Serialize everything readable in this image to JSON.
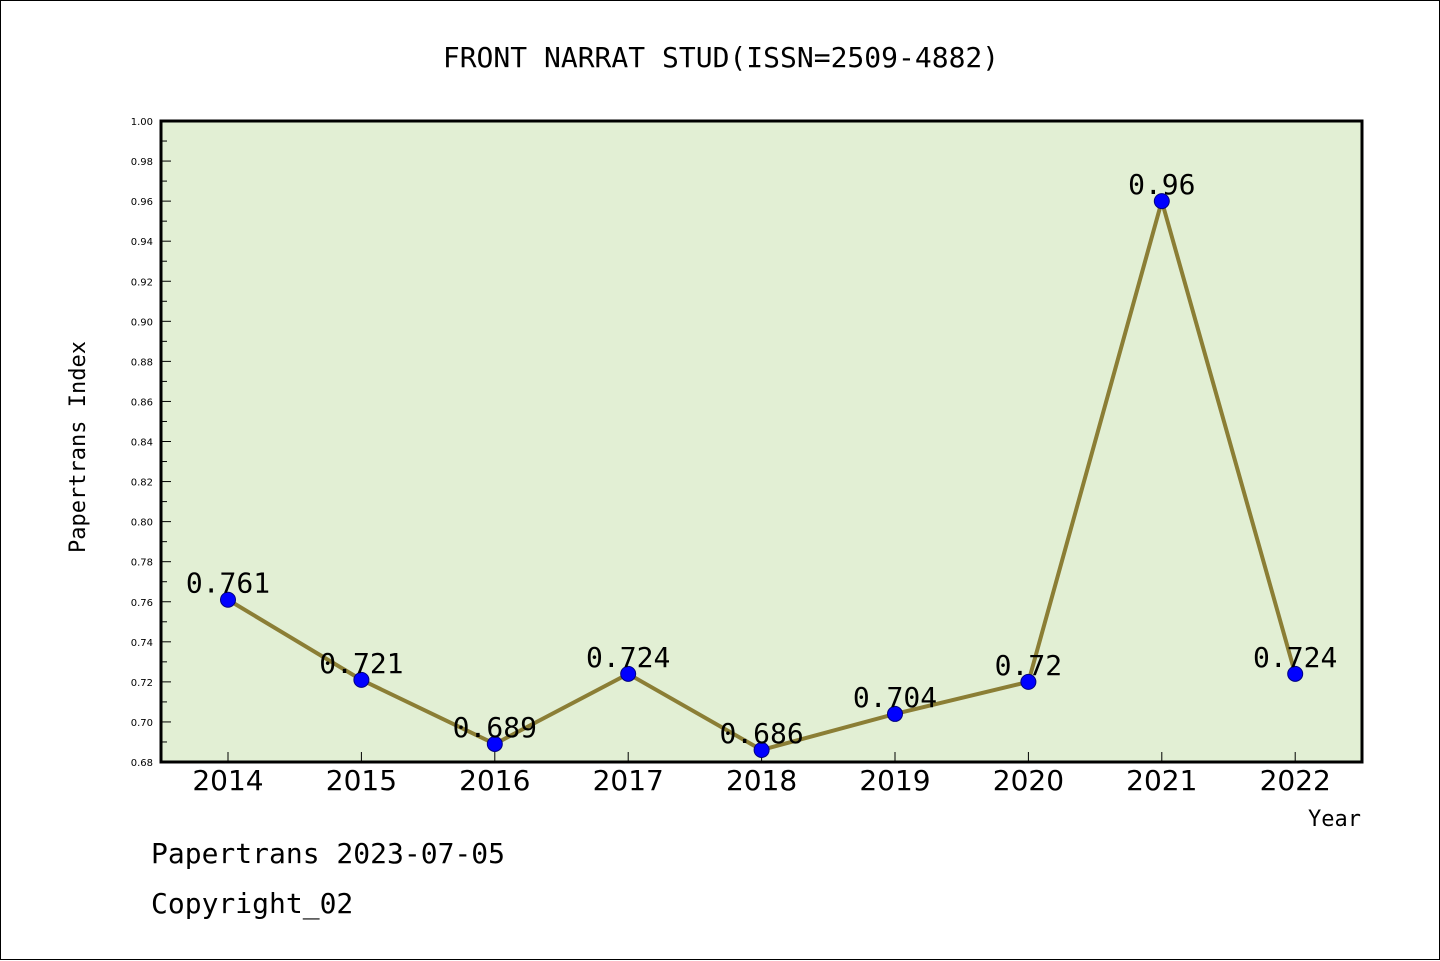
{
  "colors": {
    "plot_background": "#e2efd4",
    "line": "#8b7e35",
    "marker": "#0000ff",
    "marker_edge": "#000080"
  },
  "footer": {
    "line1": "Papertrans 2023-07-05",
    "line2": "Copyright_02"
  },
  "chart_data": {
    "type": "line",
    "title": "FRONT NARRAT STUD(ISSN=2509-4882)",
    "xlabel": "Year",
    "ylabel": "Papertrans Index",
    "ylim": [
      0.68,
      1.0
    ],
    "grid": false,
    "categories": [
      "2014",
      "2015",
      "2016",
      "2017",
      "2018",
      "2019",
      "2020",
      "2021",
      "2022"
    ],
    "yticks": [
      "0.68",
      "0.70",
      "0.72",
      "0.74",
      "0.76",
      "0.78",
      "0.80",
      "0.82",
      "0.84",
      "0.86",
      "0.88",
      "0.90",
      "0.92",
      "0.94",
      "0.96",
      "0.98",
      "1.00"
    ],
    "values": [
      0.761,
      0.721,
      0.689,
      0.724,
      0.686,
      0.704,
      0.72,
      0.96,
      0.724
    ],
    "data_labels": [
      "0.761",
      "0.721",
      "0.689",
      "0.724",
      "0.686",
      "0.704",
      "0.72",
      "0.96",
      "0.724"
    ]
  }
}
